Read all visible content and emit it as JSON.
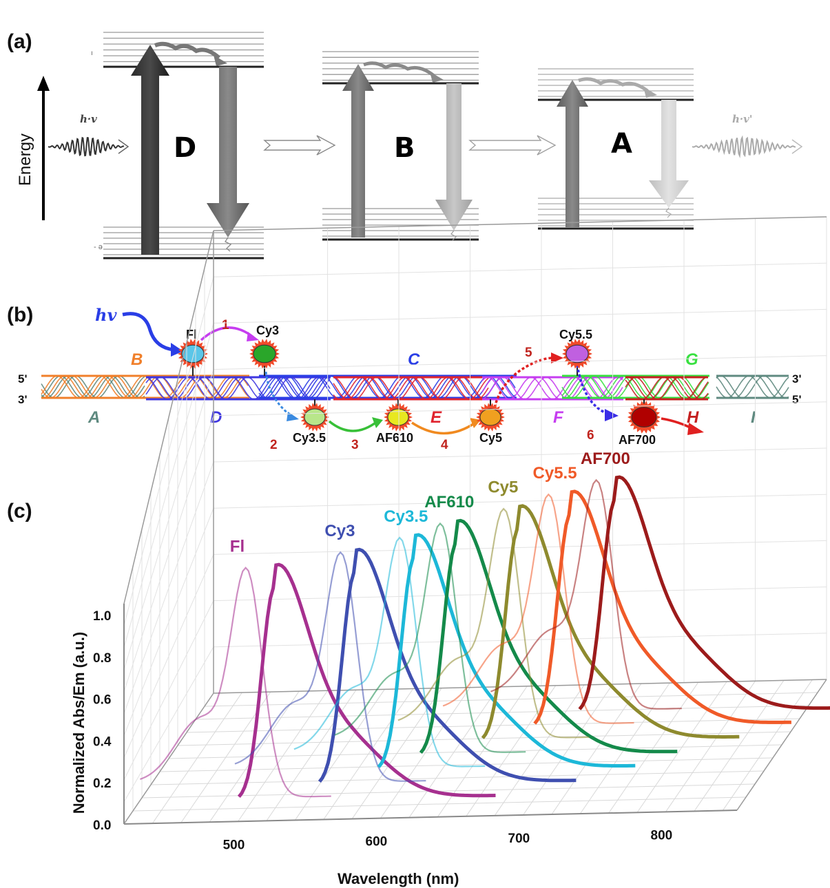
{
  "panel_a": {
    "label": "(a)",
    "energy_label": "Energy",
    "hv_in": "h·v",
    "hv_out": "h·v'",
    "donor": "D",
    "bridge": "B",
    "acceptor": "A"
  },
  "panel_b": {
    "label": "(b)",
    "hv": "hv",
    "end_5_top": "5'",
    "end_3_bottom": "3'",
    "end_3_top": "3'",
    "end_5_bottom": "5'",
    "strands": [
      {
        "id": "B",
        "color": "#f07f2a"
      },
      {
        "id": "A",
        "color": "#5f8a80"
      },
      {
        "id": "D",
        "color": "#3f36e0"
      },
      {
        "id": "C",
        "color": "#2a3ee6"
      },
      {
        "id": "E",
        "color": "#e0242e"
      },
      {
        "id": "F",
        "color": "#c63df0"
      },
      {
        "id": "G",
        "color": "#38e040"
      },
      {
        "id": "H",
        "color": "#c42020"
      },
      {
        "id": "I",
        "color": "#5f8a80"
      }
    ],
    "dyes": [
      {
        "name": "Fl",
        "color": "#5bc6e8"
      },
      {
        "name": "Cy3",
        "color": "#2aa62a"
      },
      {
        "name": "Cy3.5",
        "color": "#b8e68a"
      },
      {
        "name": "AF610",
        "color": "#e8e820"
      },
      {
        "name": "Cy5",
        "color": "#f0a020"
      },
      {
        "name": "Cy5.5",
        "color": "#c060e0"
      },
      {
        "name": "AF700",
        "color": "#b00000"
      }
    ],
    "steps": [
      "1",
      "2",
      "3",
      "4",
      "5",
      "6"
    ]
  },
  "panel_c": {
    "label": "(c)",
    "xlabel": "Wavelength (nm)",
    "ylabel": "Normalized Abs/Em (a.u.)"
  },
  "chart_data": {
    "type": "line",
    "xlabel": "Wavelength (nm)",
    "ylabel": "Normalized Abs/Em (a.u.)",
    "xlim": [
      420,
      850
    ],
    "ylim": [
      0.0,
      1.0
    ],
    "x_ticks": [
      "500",
      "600",
      "700",
      "800"
    ],
    "y_ticks": [
      "0.0",
      "0.2",
      "0.4",
      "0.6",
      "0.8",
      "1.0"
    ],
    "series": [
      {
        "name": "Fl",
        "color": "#a6308f",
        "abs_peak": 495,
        "em_peak": 520
      },
      {
        "name": "Cy3",
        "color": "#3f4fb0",
        "abs_peak": 555,
        "em_peak": 570
      },
      {
        "name": "Cy3.5",
        "color": "#1db8d8",
        "abs_peak": 590,
        "em_peak": 605
      },
      {
        "name": "AF610",
        "color": "#148a4a",
        "abs_peak": 612,
        "em_peak": 628
      },
      {
        "name": "Cy5",
        "color": "#8e8a2e",
        "abs_peak": 650,
        "em_peak": 665
      },
      {
        "name": "Cy5.5",
        "color": "#f05a28",
        "abs_peak": 675,
        "em_peak": 695
      },
      {
        "name": "AF700",
        "color": "#9c1b1b",
        "abs_peak": 702,
        "em_peak": 720
      }
    ]
  }
}
